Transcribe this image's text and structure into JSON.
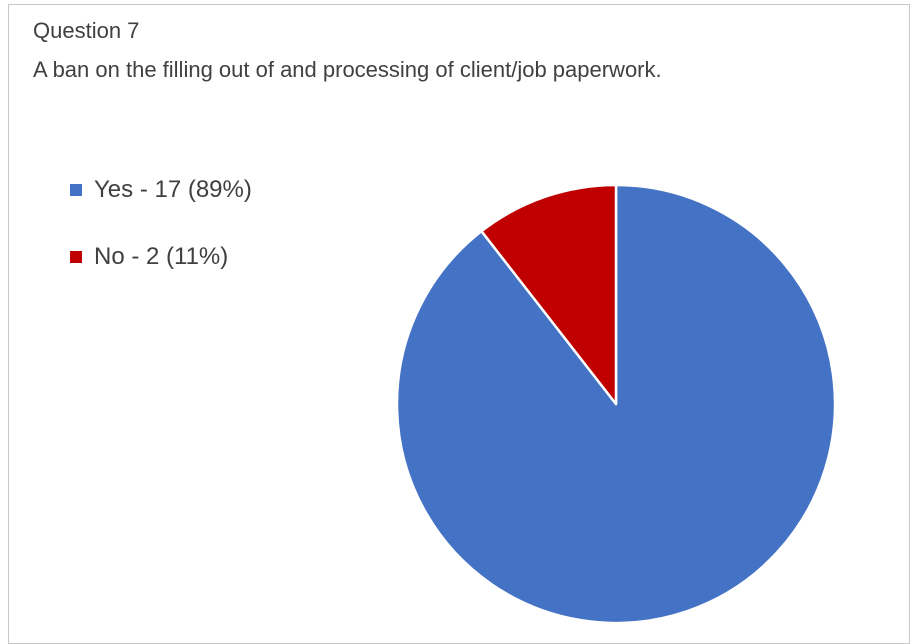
{
  "chart_data": {
    "type": "pie",
    "title": "Question 7",
    "subtitle": "A ban on the filling out of and processing of client/job paperwork.",
    "categories": [
      "Yes",
      "No"
    ],
    "values": [
      17,
      2
    ],
    "percentages": [
      89,
      11
    ],
    "legend_labels": [
      "Yes - 17 (89%)",
      "No - 2 (11%)"
    ],
    "colors": [
      "#4472C4",
      "#C00000"
    ],
    "legend_position": "left",
    "start_angle_deg": 0,
    "direction": "clockwise"
  }
}
